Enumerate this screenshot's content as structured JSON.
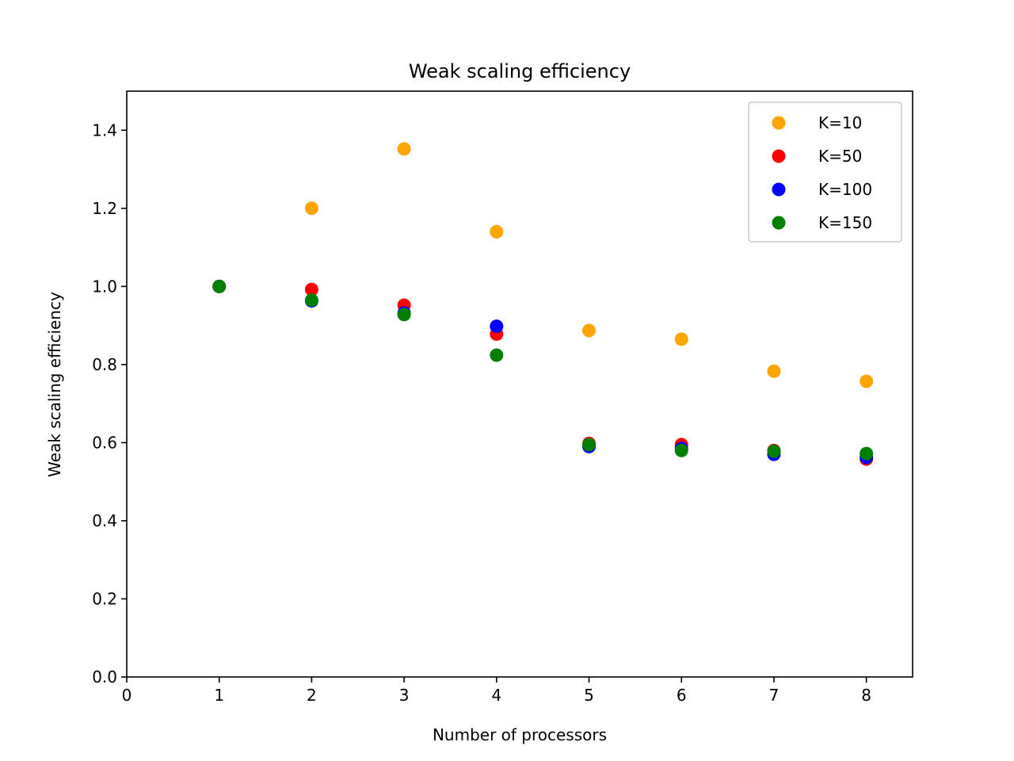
{
  "chart_data": {
    "type": "scatter",
    "title": "Weak scaling efficiency",
    "xlabel": "Number of processors",
    "ylabel": "Weak scaling efficiency",
    "xlim": [
      0,
      8.5
    ],
    "ylim": [
      0,
      1.5
    ],
    "xticks": [
      "0",
      "1",
      "2",
      "3",
      "4",
      "5",
      "6",
      "7",
      "8"
    ],
    "yticks": [
      "0.0",
      "0.2",
      "0.4",
      "0.6",
      "0.8",
      "1.0",
      "1.2",
      "1.4"
    ],
    "grid": false,
    "legend": "top-right",
    "series": [
      {
        "name": "K=10",
        "color": "#ffa500",
        "x": [
          1,
          2,
          3,
          4,
          5,
          6,
          7,
          8
        ],
        "y": [
          1.0,
          1.2,
          1.352,
          1.14,
          0.887,
          0.865,
          0.783,
          0.757
        ]
      },
      {
        "name": "K=50",
        "color": "#ff0000",
        "x": [
          1,
          2,
          3,
          4,
          5,
          6,
          7,
          8
        ],
        "y": [
          1.0,
          0.992,
          0.952,
          0.878,
          0.598,
          0.595,
          0.58,
          0.558
        ]
      },
      {
        "name": "K=100",
        "color": "#0000ff",
        "x": [
          1,
          2,
          3,
          4,
          5,
          6,
          7,
          8
        ],
        "y": [
          1.0,
          0.963,
          0.932,
          0.898,
          0.59,
          0.585,
          0.57,
          0.562
        ]
      },
      {
        "name": "K=150",
        "color": "#008000",
        "x": [
          1,
          2,
          3,
          4,
          5,
          6,
          7,
          8
        ],
        "y": [
          1.0,
          0.965,
          0.928,
          0.824,
          0.595,
          0.58,
          0.578,
          0.572
        ]
      }
    ]
  }
}
